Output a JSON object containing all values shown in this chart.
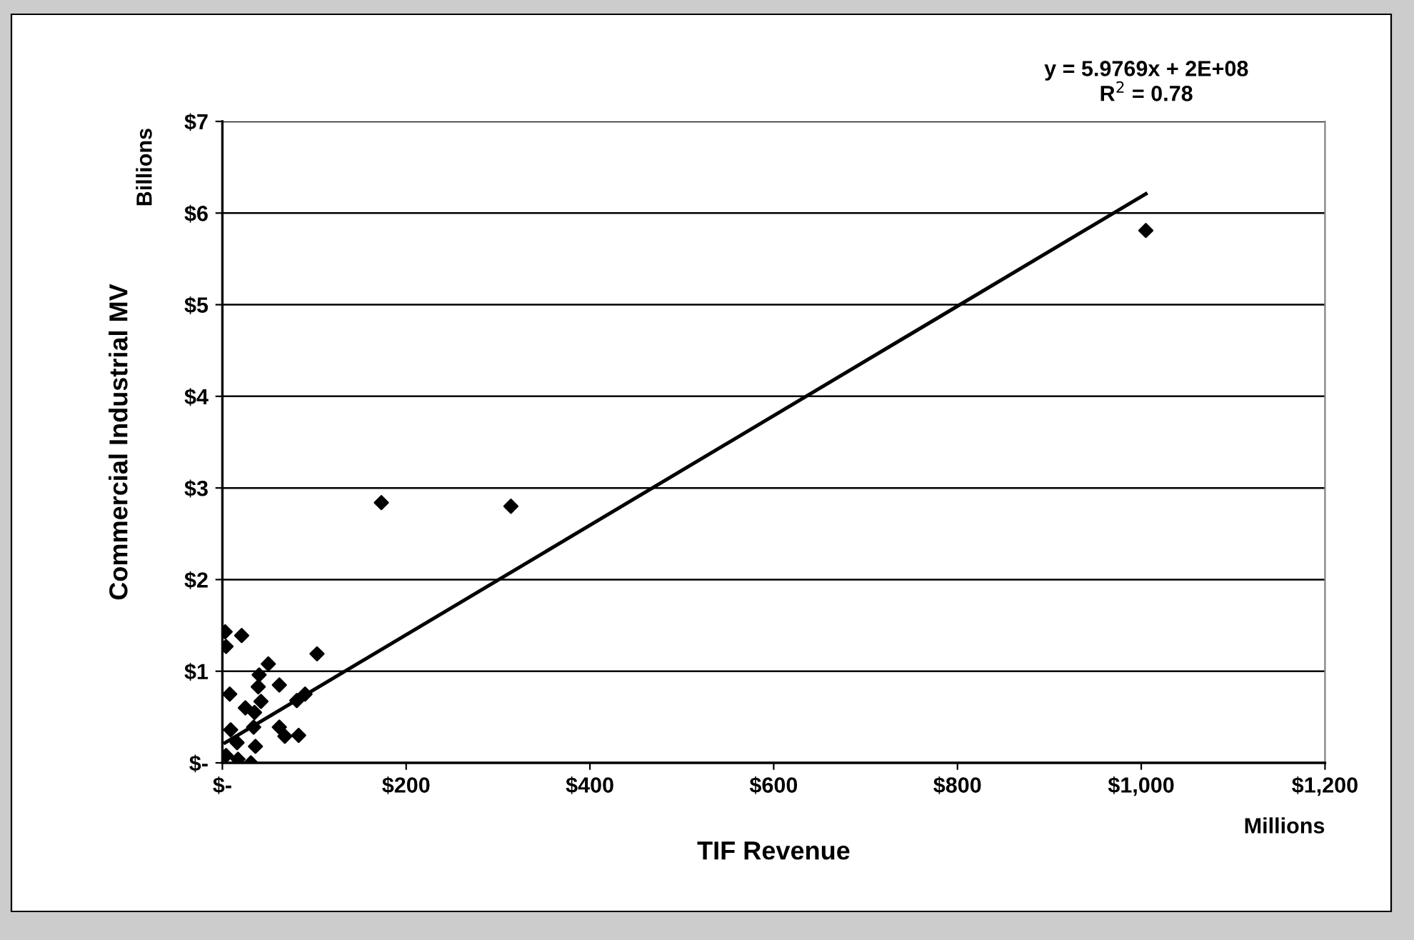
{
  "chart_data": {
    "type": "scatter",
    "xlabel": "TIF Revenue",
    "ylabel": "Commercial Industrial MV",
    "annotations": [
      "Billions",
      "Millions",
      "y = 5.9769x + 2E+08\nR$^{2}$ = 0.78"
    ],
    "series": [
      {
        "color": "#000000",
        "marker": "diamond",
        "x": [
          3,
          21,
          4,
          103,
          50,
          40,
          39,
          62,
          8,
          90,
          81,
          42,
          25,
          35,
          34,
          62,
          68,
          83,
          9,
          31,
          173,
          314,
          1005,
          4,
          16,
          36,
          17
        ],
        "values": [
          1.43,
          1.39,
          1.27,
          1.19,
          1.08,
          0.96,
          0.83,
          0.85,
          0.75,
          0.75,
          0.68,
          0.67,
          0.6,
          0.55,
          0.39,
          0.39,
          0.29,
          0.3,
          0.36,
          0.0,
          2.84,
          2.8,
          5.81,
          0.08,
          0.22,
          0.18,
          0.04
        ]
      },
      {
        "type": "line",
        "color": "#000000",
        "line_style": "solid",
        "x": [
          3,
          1005
        ],
        "values": [
          0.22,
          6.21
        ]
      }
    ],
    "xlim": [
      0,
      1200
    ],
    "ylim": [
      0,
      7
    ],
    "xticks": [
      {
        "value": 0,
        "label": "$-"
      },
      {
        "value": 200,
        "label": "$200"
      },
      {
        "value": 400,
        "label": "$400"
      },
      {
        "value": 600,
        "label": "$600"
      },
      {
        "value": 800,
        "label": "$800"
      },
      {
        "value": 1000,
        "label": "$1,000"
      },
      {
        "value": 1200,
        "label": "$1,200"
      }
    ],
    "yticks": [
      {
        "value": 0,
        "label": "$-"
      },
      {
        "value": 1,
        "label": "$1"
      },
      {
        "value": 2,
        "label": "$2"
      },
      {
        "value": 3,
        "label": "$3"
      },
      {
        "value": 4,
        "label": "$4"
      },
      {
        "value": 5,
        "label": "$5"
      },
      {
        "value": 6,
        "label": "$6"
      },
      {
        "value": 7,
        "label": "$7"
      }
    ],
    "grid": "y",
    "legend": false
  }
}
